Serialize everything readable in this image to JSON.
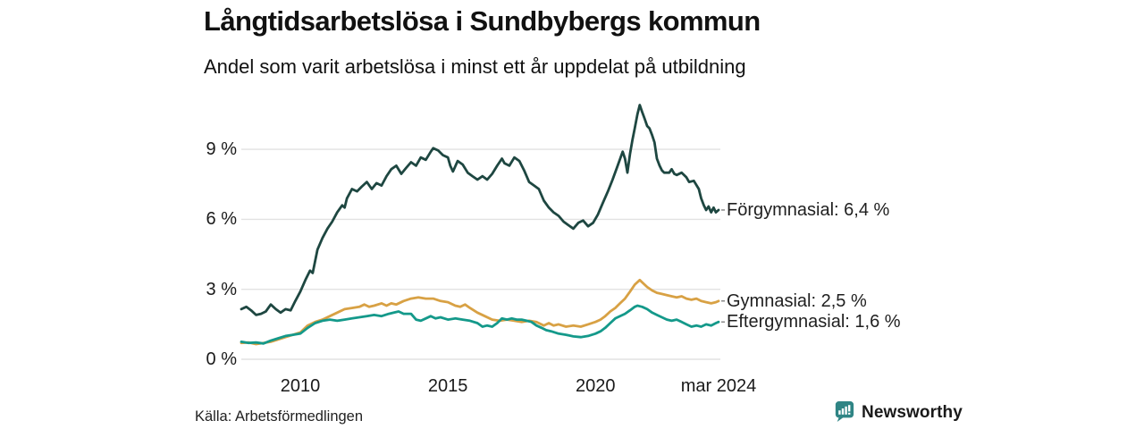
{
  "header": {
    "title": "Långtidsarbetslösa i Sundbybergs kommun",
    "subtitle": "Andel som varit arbetslösa i minst ett år uppdelat på utbildning"
  },
  "footer": {
    "source": "Källa: Arbetsförmedlingen",
    "brand": "Newsworthy"
  },
  "colors": {
    "forgymnasial": "#1e4741",
    "gymnasial": "#d8a144",
    "eftergymnasial": "#14998a",
    "brand": "#2f8585",
    "grid": "#e2e2e2",
    "connector": "#8a8a8a"
  },
  "chart_data": {
    "type": "line",
    "title": "Långtidsarbetslösa i Sundbybergs kommun",
    "subtitle": "Andel som varit arbetslösa i minst ett år uppdelat på utbildning",
    "xlabel": "",
    "ylabel": "",
    "xlim": [
      2008.0,
      2024.17
    ],
    "ylim": [
      0,
      11.5
    ],
    "grid": true,
    "legend_position": "right-of-line-end",
    "y_ticks": [
      {
        "label": "9 %",
        "value": 9
      },
      {
        "label": "6 %",
        "value": 6
      },
      {
        "label": "3 %",
        "value": 3
      },
      {
        "label": "0 %",
        "value": 0
      }
    ],
    "x_ticks": [
      {
        "label": "2010",
        "value": 2010
      },
      {
        "label": "2015",
        "value": 2015
      },
      {
        "label": "2020",
        "value": 2020
      },
      {
        "label": "mar 2024",
        "value": 2024.17
      }
    ],
    "series": [
      {
        "name": "Förgymnasial",
        "label": "Förgymnasial: 6,4 %",
        "last_value": 6.4,
        "color": "#1e4741",
        "points": [
          [
            2008.0,
            2.15
          ],
          [
            2008.17,
            2.25
          ],
          [
            2008.33,
            2.1
          ],
          [
            2008.5,
            1.9
          ],
          [
            2008.67,
            1.95
          ],
          [
            2008.83,
            2.05
          ],
          [
            2009.0,
            2.35
          ],
          [
            2009.17,
            2.15
          ],
          [
            2009.33,
            2.0
          ],
          [
            2009.5,
            2.15
          ],
          [
            2009.67,
            2.1
          ],
          [
            2009.83,
            2.5
          ],
          [
            2010.0,
            2.9
          ],
          [
            2010.17,
            3.4
          ],
          [
            2010.33,
            3.8
          ],
          [
            2010.42,
            3.7
          ],
          [
            2010.58,
            4.7
          ],
          [
            2010.75,
            5.2
          ],
          [
            2010.92,
            5.6
          ],
          [
            2011.08,
            5.9
          ],
          [
            2011.25,
            6.3
          ],
          [
            2011.42,
            6.6
          ],
          [
            2011.5,
            6.5
          ],
          [
            2011.58,
            6.9
          ],
          [
            2011.75,
            7.3
          ],
          [
            2011.92,
            7.2
          ],
          [
            2012.08,
            7.4
          ],
          [
            2012.25,
            7.6
          ],
          [
            2012.42,
            7.3
          ],
          [
            2012.58,
            7.55
          ],
          [
            2012.75,
            7.45
          ],
          [
            2012.92,
            7.85
          ],
          [
            2013.08,
            8.15
          ],
          [
            2013.25,
            8.3
          ],
          [
            2013.42,
            7.95
          ],
          [
            2013.58,
            8.2
          ],
          [
            2013.75,
            8.45
          ],
          [
            2013.92,
            8.3
          ],
          [
            2014.08,
            8.65
          ],
          [
            2014.25,
            8.55
          ],
          [
            2014.42,
            8.9
          ],
          [
            2014.5,
            9.05
          ],
          [
            2014.67,
            8.95
          ],
          [
            2014.83,
            8.75
          ],
          [
            2015.0,
            8.65
          ],
          [
            2015.08,
            8.3
          ],
          [
            2015.17,
            8.05
          ],
          [
            2015.33,
            8.5
          ],
          [
            2015.5,
            8.35
          ],
          [
            2015.67,
            8.0
          ],
          [
            2015.83,
            7.85
          ],
          [
            2016.0,
            7.7
          ],
          [
            2016.17,
            7.85
          ],
          [
            2016.33,
            7.7
          ],
          [
            2016.5,
            7.95
          ],
          [
            2016.67,
            8.3
          ],
          [
            2016.83,
            8.6
          ],
          [
            2016.92,
            8.4
          ],
          [
            2017.08,
            8.3
          ],
          [
            2017.25,
            8.65
          ],
          [
            2017.42,
            8.5
          ],
          [
            2017.58,
            8.1
          ],
          [
            2017.75,
            7.6
          ],
          [
            2017.92,
            7.45
          ],
          [
            2018.08,
            7.3
          ],
          [
            2018.25,
            6.8
          ],
          [
            2018.42,
            6.5
          ],
          [
            2018.58,
            6.3
          ],
          [
            2018.75,
            6.15
          ],
          [
            2018.92,
            5.9
          ],
          [
            2019.08,
            5.75
          ],
          [
            2019.25,
            5.6
          ],
          [
            2019.42,
            5.85
          ],
          [
            2019.58,
            5.95
          ],
          [
            2019.75,
            5.7
          ],
          [
            2019.92,
            5.85
          ],
          [
            2020.08,
            6.2
          ],
          [
            2020.25,
            6.7
          ],
          [
            2020.42,
            7.2
          ],
          [
            2020.58,
            7.7
          ],
          [
            2020.75,
            8.3
          ],
          [
            2020.92,
            8.9
          ],
          [
            2021.0,
            8.6
          ],
          [
            2021.08,
            8.0
          ],
          [
            2021.17,
            8.8
          ],
          [
            2021.25,
            9.4
          ],
          [
            2021.33,
            9.9
          ],
          [
            2021.42,
            10.5
          ],
          [
            2021.5,
            10.9
          ],
          [
            2021.58,
            10.6
          ],
          [
            2021.67,
            10.3
          ],
          [
            2021.75,
            10.0
          ],
          [
            2021.83,
            9.9
          ],
          [
            2021.92,
            9.6
          ],
          [
            2022.0,
            9.3
          ],
          [
            2022.08,
            8.6
          ],
          [
            2022.17,
            8.3
          ],
          [
            2022.25,
            8.1
          ],
          [
            2022.33,
            8.0
          ],
          [
            2022.5,
            8.0
          ],
          [
            2022.58,
            8.15
          ],
          [
            2022.67,
            7.95
          ],
          [
            2022.75,
            7.9
          ],
          [
            2022.92,
            8.0
          ],
          [
            2023.08,
            7.8
          ],
          [
            2023.17,
            7.6
          ],
          [
            2023.33,
            7.65
          ],
          [
            2023.5,
            7.3
          ],
          [
            2023.58,
            6.9
          ],
          [
            2023.67,
            6.6
          ],
          [
            2023.75,
            6.4
          ],
          [
            2023.83,
            6.55
          ],
          [
            2023.92,
            6.3
          ],
          [
            2024.0,
            6.5
          ],
          [
            2024.08,
            6.3
          ],
          [
            2024.17,
            6.4
          ]
        ]
      },
      {
        "name": "Gymnasial",
        "label": "Gymnasial: 2,5 %",
        "last_value": 2.5,
        "color": "#d8a144",
        "points": [
          [
            2008.0,
            0.7
          ],
          [
            2008.25,
            0.72
          ],
          [
            2008.5,
            0.65
          ],
          [
            2008.75,
            0.7
          ],
          [
            2009.0,
            0.75
          ],
          [
            2009.25,
            0.85
          ],
          [
            2009.5,
            0.95
          ],
          [
            2009.75,
            1.05
          ],
          [
            2010.0,
            1.15
          ],
          [
            2010.25,
            1.45
          ],
          [
            2010.5,
            1.6
          ],
          [
            2010.75,
            1.7
          ],
          [
            2011.0,
            1.85
          ],
          [
            2011.25,
            2.0
          ],
          [
            2011.5,
            2.15
          ],
          [
            2011.75,
            2.2
          ],
          [
            2012.0,
            2.25
          ],
          [
            2012.17,
            2.35
          ],
          [
            2012.33,
            2.25
          ],
          [
            2012.5,
            2.3
          ],
          [
            2012.75,
            2.4
          ],
          [
            2012.92,
            2.3
          ],
          [
            2013.08,
            2.4
          ],
          [
            2013.25,
            2.35
          ],
          [
            2013.5,
            2.5
          ],
          [
            2013.75,
            2.6
          ],
          [
            2014.0,
            2.65
          ],
          [
            2014.25,
            2.6
          ],
          [
            2014.5,
            2.6
          ],
          [
            2014.75,
            2.5
          ],
          [
            2015.0,
            2.45
          ],
          [
            2015.25,
            2.3
          ],
          [
            2015.42,
            2.25
          ],
          [
            2015.58,
            2.35
          ],
          [
            2015.75,
            2.2
          ],
          [
            2016.0,
            2.0
          ],
          [
            2016.25,
            1.85
          ],
          [
            2016.5,
            1.7
          ],
          [
            2016.75,
            1.65
          ],
          [
            2017.0,
            1.7
          ],
          [
            2017.25,
            1.65
          ],
          [
            2017.5,
            1.6
          ],
          [
            2017.75,
            1.65
          ],
          [
            2018.0,
            1.6
          ],
          [
            2018.25,
            1.45
          ],
          [
            2018.42,
            1.55
          ],
          [
            2018.58,
            1.45
          ],
          [
            2018.75,
            1.5
          ],
          [
            2019.0,
            1.4
          ],
          [
            2019.25,
            1.45
          ],
          [
            2019.5,
            1.4
          ],
          [
            2019.75,
            1.5
          ],
          [
            2020.0,
            1.6
          ],
          [
            2020.17,
            1.7
          ],
          [
            2020.33,
            1.85
          ],
          [
            2020.5,
            2.05
          ],
          [
            2020.67,
            2.2
          ],
          [
            2020.83,
            2.4
          ],
          [
            2021.0,
            2.6
          ],
          [
            2021.17,
            2.9
          ],
          [
            2021.33,
            3.2
          ],
          [
            2021.5,
            3.4
          ],
          [
            2021.58,
            3.3
          ],
          [
            2021.75,
            3.1
          ],
          [
            2021.92,
            2.95
          ],
          [
            2022.08,
            2.85
          ],
          [
            2022.25,
            2.8
          ],
          [
            2022.42,
            2.75
          ],
          [
            2022.58,
            2.7
          ],
          [
            2022.75,
            2.65
          ],
          [
            2022.92,
            2.7
          ],
          [
            2023.08,
            2.6
          ],
          [
            2023.25,
            2.55
          ],
          [
            2023.42,
            2.6
          ],
          [
            2023.58,
            2.5
          ],
          [
            2023.75,
            2.45
          ],
          [
            2023.92,
            2.4
          ],
          [
            2024.08,
            2.45
          ],
          [
            2024.17,
            2.5
          ]
        ]
      },
      {
        "name": "Eftergymnasial",
        "label": "Eftergymnasial: 1,6 %",
        "last_value": 1.6,
        "color": "#14998a",
        "points": [
          [
            2008.0,
            0.75
          ],
          [
            2008.25,
            0.7
          ],
          [
            2008.5,
            0.72
          ],
          [
            2008.75,
            0.68
          ],
          [
            2009.0,
            0.8
          ],
          [
            2009.25,
            0.9
          ],
          [
            2009.5,
            1.0
          ],
          [
            2009.75,
            1.05
          ],
          [
            2010.0,
            1.1
          ],
          [
            2010.25,
            1.35
          ],
          [
            2010.5,
            1.55
          ],
          [
            2010.75,
            1.65
          ],
          [
            2011.0,
            1.7
          ],
          [
            2011.25,
            1.65
          ],
          [
            2011.5,
            1.7
          ],
          [
            2011.75,
            1.75
          ],
          [
            2012.0,
            1.8
          ],
          [
            2012.25,
            1.85
          ],
          [
            2012.5,
            1.9
          ],
          [
            2012.75,
            1.85
          ],
          [
            2013.0,
            1.95
          ],
          [
            2013.17,
            2.0
          ],
          [
            2013.33,
            2.05
          ],
          [
            2013.5,
            1.95
          ],
          [
            2013.75,
            1.95
          ],
          [
            2013.92,
            1.7
          ],
          [
            2014.08,
            1.65
          ],
          [
            2014.25,
            1.75
          ],
          [
            2014.42,
            1.85
          ],
          [
            2014.58,
            1.75
          ],
          [
            2014.75,
            1.8
          ],
          [
            2015.0,
            1.7
          ],
          [
            2015.25,
            1.75
          ],
          [
            2015.5,
            1.7
          ],
          [
            2015.75,
            1.65
          ],
          [
            2016.0,
            1.55
          ],
          [
            2016.17,
            1.4
          ],
          [
            2016.33,
            1.45
          ],
          [
            2016.5,
            1.4
          ],
          [
            2016.67,
            1.55
          ],
          [
            2016.83,
            1.75
          ],
          [
            2017.0,
            1.7
          ],
          [
            2017.17,
            1.75
          ],
          [
            2017.33,
            1.7
          ],
          [
            2017.5,
            1.7
          ],
          [
            2017.67,
            1.65
          ],
          [
            2017.83,
            1.6
          ],
          [
            2018.0,
            1.45
          ],
          [
            2018.17,
            1.35
          ],
          [
            2018.33,
            1.25
          ],
          [
            2018.5,
            1.2
          ],
          [
            2018.75,
            1.1
          ],
          [
            2019.0,
            1.05
          ],
          [
            2019.25,
            0.98
          ],
          [
            2019.5,
            0.95
          ],
          [
            2019.75,
            1.0
          ],
          [
            2020.0,
            1.1
          ],
          [
            2020.17,
            1.2
          ],
          [
            2020.33,
            1.35
          ],
          [
            2020.5,
            1.55
          ],
          [
            2020.67,
            1.75
          ],
          [
            2020.83,
            1.85
          ],
          [
            2021.0,
            1.95
          ],
          [
            2021.17,
            2.1
          ],
          [
            2021.33,
            2.25
          ],
          [
            2021.42,
            2.3
          ],
          [
            2021.58,
            2.25
          ],
          [
            2021.75,
            2.15
          ],
          [
            2021.92,
            2.0
          ],
          [
            2022.08,
            1.9
          ],
          [
            2022.25,
            1.8
          ],
          [
            2022.42,
            1.7
          ],
          [
            2022.58,
            1.65
          ],
          [
            2022.75,
            1.7
          ],
          [
            2022.92,
            1.6
          ],
          [
            2023.08,
            1.5
          ],
          [
            2023.25,
            1.4
          ],
          [
            2023.42,
            1.45
          ],
          [
            2023.58,
            1.4
          ],
          [
            2023.75,
            1.5
          ],
          [
            2023.92,
            1.45
          ],
          [
            2024.08,
            1.55
          ],
          [
            2024.17,
            1.6
          ]
        ]
      }
    ]
  }
}
